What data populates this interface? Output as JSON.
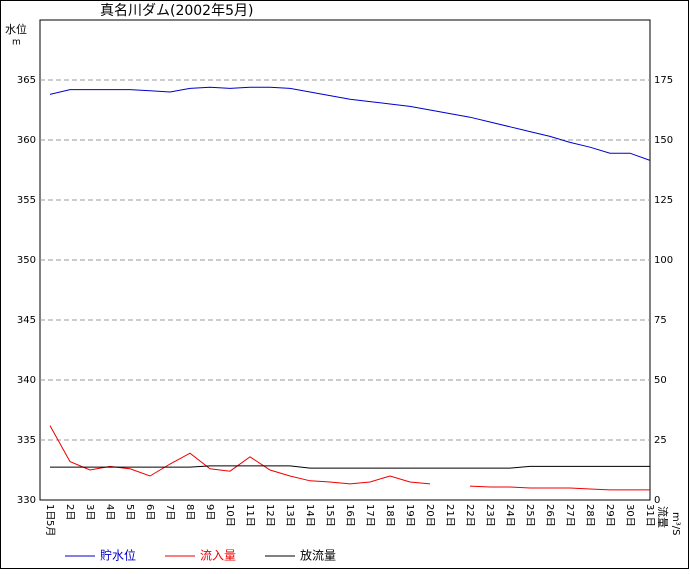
{
  "chart_data": {
    "type": "line",
    "title": "真名川ダム(2002年5月)",
    "y_label": "水位",
    "y_unit": "m",
    "y2_label": "流量",
    "y2_unit": "m³/S",
    "month_label": "5月",
    "categories": [
      "1日",
      "2日",
      "3日",
      "4日",
      "5日",
      "6日",
      "7日",
      "8日",
      "9日",
      "10日",
      "11日",
      "12日",
      "13日",
      "14日",
      "15日",
      "16日",
      "17日",
      "18日",
      "19日",
      "20日",
      "21日",
      "22日",
      "23日",
      "24日",
      "25日",
      "26日",
      "27日",
      "28日",
      "29日",
      "30日",
      "31日"
    ],
    "ylim": [
      330,
      370
    ],
    "yticks": [
      330,
      335,
      340,
      345,
      350,
      355,
      360,
      365
    ],
    "y2lim": [
      0,
      200
    ],
    "y2ticks": [
      0,
      25,
      50,
      75,
      100,
      125,
      150,
      175
    ],
    "grid": true,
    "series": [
      {
        "name": "貯水位",
        "color": "#0000cc",
        "axis": "y",
        "values": [
          363.8,
          364.2,
          364.2,
          364.2,
          364.2,
          364.1,
          364.0,
          364.3,
          364.4,
          364.3,
          364.4,
          364.4,
          364.3,
          364.0,
          363.7,
          363.4,
          363.2,
          363.0,
          362.8,
          362.5,
          362.2,
          361.9,
          361.5,
          361.1,
          360.7,
          360.3,
          359.8,
          359.4,
          358.9,
          358.9,
          358.3
        ]
      },
      {
        "name": "流入量",
        "color": "#ee0000",
        "axis": "y2",
        "values": [
          31,
          16,
          12.5,
          14,
          13,
          10,
          15,
          19.5,
          13,
          12,
          18,
          12.5,
          10,
          8,
          7.5,
          6.7,
          7.5,
          10,
          7.5,
          6.7,
          null,
          5.8,
          5.4,
          5.4,
          5,
          5,
          5,
          4.6,
          4.2,
          4.2,
          4.2
        ]
      },
      {
        "name": "放流量",
        "color": "#000000",
        "axis": "y2",
        "values": [
          13.7,
          13.7,
          13.7,
          13.7,
          13.7,
          13.7,
          13.7,
          13.7,
          14.2,
          14.2,
          14.2,
          14.2,
          14.2,
          13.3,
          13.3,
          13.3,
          13.3,
          13.3,
          13.3,
          13.3,
          13.3,
          13.3,
          13.3,
          13.3,
          14,
          14,
          14,
          14,
          14,
          14,
          14
        ]
      }
    ]
  }
}
